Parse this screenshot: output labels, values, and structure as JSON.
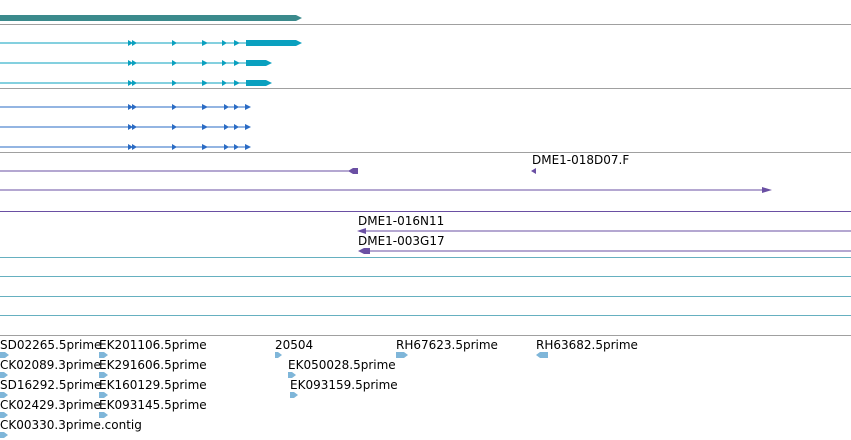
{
  "colors": {
    "separator": "#a0a0a0",
    "gene_bar": "#3b8a8c",
    "transcript_cyan": "#0aa0bf",
    "transcript_blue": "#2a6bc4",
    "purple": "#6a4fa3",
    "empty_track": "#66b0c0",
    "est": "#7fb6d9"
  },
  "icons": {
    "gene_end": "arrow-right-icon",
    "exon": "arrow-right-icon",
    "read_left": "arrow-left-icon",
    "read_right": "arrow-right-icon",
    "est": "chevron-right-icon"
  },
  "labels": {
    "dme1_018d07f": "DME1-018D07.F",
    "dme1_016n11": "DME1-016N11",
    "dme1_003g17": "DME1-003G17"
  },
  "est_labels": [
    "SD02265.5prime",
    "EK201106.5prime",
    "20504",
    "RH67623.5prime",
    "RH63682.5prime",
    "CK02089.3prime",
    "EK291606.5prime",
    "EK050028.5prime",
    "SD16292.5prime",
    "EK160129.5prime",
    "EK093159.5prime",
    "CK02429.3prime",
    "EK093145.5prime",
    "CK00330.3prime.contig"
  ]
}
